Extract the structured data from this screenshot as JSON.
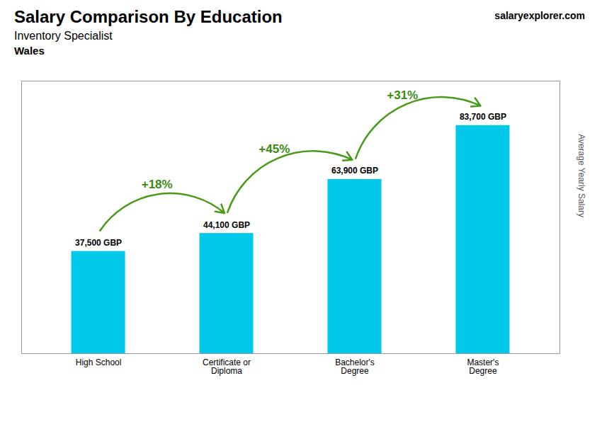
{
  "chart_data": {
    "type": "bar",
    "title": "Salary Comparison By Education",
    "subtitle": "Inventory Specialist",
    "location": "Wales",
    "source": "salaryexplorer.com",
    "ylabel": "Average Yearly Salary",
    "categories": [
      "High School",
      "Certificate or\nDiploma",
      "Bachelor's\nDegree",
      "Master's\nDegree"
    ],
    "values": [
      37500,
      44100,
      63900,
      83700
    ],
    "value_labels": [
      "37,500 GBP",
      "44,100 GBP",
      "63,900 GBP",
      "83,700 GBP"
    ],
    "data_labels": true,
    "color": "#00c8e8",
    "ylim": [
      0,
      100000
    ],
    "yticks": [],
    "tick_labels": "x",
    "grid": false,
    "annotations": [
      {
        "text": "+18%",
        "from": "High School",
        "to": "Certificate or\nDiploma"
      },
      {
        "text": "+45%",
        "from": "Certificate or\nDiploma",
        "to": "Bachelor's\nDegree"
      },
      {
        "text": "+31%",
        "from": "Bachelor's\nDegree",
        "to": "Master's\nDegree"
      }
    ]
  }
}
